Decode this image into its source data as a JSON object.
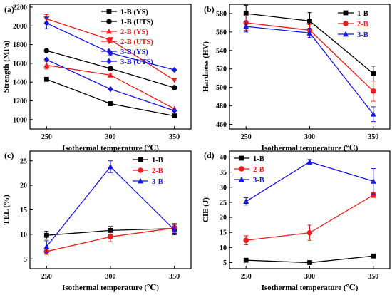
{
  "figure": {
    "colors": {
      "black": "#000000",
      "red": "#ee1c1c",
      "blue": "#1515e6"
    }
  },
  "chart_data": [
    {
      "panel": "(a)",
      "type": "line",
      "xlabel": "Isothermal temperature (℃)",
      "ylabel": "Strength (MPa)",
      "x": [
        250,
        300,
        350
      ],
      "xlim": [
        237,
        363
      ],
      "ylim": [
        900,
        2230
      ],
      "yticks": [
        1000,
        1200,
        1400,
        1600,
        1800,
        2000,
        2200
      ],
      "legend_position": "top-right",
      "series": [
        {
          "name": "1-B (YS)",
          "values": [
            1430,
            1170,
            1040
          ],
          "errors": [
            0,
            0,
            0
          ],
          "color": "black",
          "marker": "square"
        },
        {
          "name": "1-B (UTS)",
          "values": [
            1735,
            1545,
            1340
          ],
          "errors": [
            0,
            0,
            0
          ],
          "color": "black",
          "marker": "circle"
        },
        {
          "name": "2-B (YS)",
          "values": [
            1580,
            1475,
            1115
          ],
          "errors": [
            40,
            20,
            0
          ],
          "color": "red",
          "marker": "triangle-up"
        },
        {
          "name": "2-B (UTS)",
          "values": [
            2075,
            1850,
            1420
          ],
          "errors": [
            45,
            25,
            0
          ],
          "color": "red",
          "marker": "triangle-down"
        },
        {
          "name": "3-B (YS)",
          "values": [
            1640,
            1325,
            1095
          ],
          "errors": [
            0,
            0,
            0
          ],
          "color": "blue",
          "marker": "diamond"
        },
        {
          "name": "3-B (UTS)",
          "values": [
            2030,
            1710,
            1530
          ],
          "errors": [
            60,
            20,
            0
          ],
          "color": "blue",
          "marker": "diamond"
        }
      ]
    },
    {
      "panel": "(b)",
      "type": "line",
      "xlabel": "Isothermal temperature (℃)",
      "ylabel": "Hardness (HV)",
      "x": [
        250,
        300,
        350
      ],
      "xlim": [
        237,
        363
      ],
      "ylim": [
        455,
        590
      ],
      "yticks": [
        460,
        480,
        500,
        520,
        540,
        560,
        580
      ],
      "legend_position": "top-right",
      "series": [
        {
          "name": "1-B",
          "values": [
            580,
            572,
            515
          ],
          "errors": [
            9,
            9,
            8
          ],
          "color": "black",
          "marker": "square"
        },
        {
          "name": "2-B",
          "values": [
            570,
            562,
            496
          ],
          "errors": [
            8,
            6,
            11
          ],
          "color": "red",
          "marker": "circle"
        },
        {
          "name": "3-B",
          "values": [
            566,
            559,
            471
          ],
          "errors": [
            6,
            5,
            8
          ],
          "color": "blue",
          "marker": "triangle-up"
        }
      ]
    },
    {
      "panel": "(c)",
      "type": "line",
      "xlabel": "Isothermal temperature (℃)",
      "ylabel": "TEL (%)",
      "x": [
        250,
        300,
        350
      ],
      "xlim": [
        237,
        363
      ],
      "ylim": [
        3,
        27
      ],
      "yticks": [
        5,
        10,
        15,
        20,
        25
      ],
      "legend_position": "top-right",
      "series": [
        {
          "name": "1-B",
          "values": [
            9.8,
            10.8,
            11.2
          ],
          "errors": [
            0.8,
            0.8,
            1.0
          ],
          "color": "black",
          "marker": "square"
        },
        {
          "name": "2-B",
          "values": [
            6.5,
            9.5,
            11.3
          ],
          "errors": [
            0.6,
            1.0,
            0.9
          ],
          "color": "red",
          "marker": "circle"
        },
        {
          "name": "3-B",
          "values": [
            7.5,
            23.8,
            10.9
          ],
          "errors": [
            1.2,
            1.2,
            1.0
          ],
          "color": "blue",
          "marker": "triangle-up"
        }
      ]
    },
    {
      "panel": "(d)",
      "type": "line",
      "xlabel": "Isothermal temperature (℃)",
      "ylabel": "CIE (J)",
      "x": [
        250,
        300,
        350
      ],
      "xlim": [
        237,
        363
      ],
      "ylim": [
        3,
        42
      ],
      "yticks": [
        5,
        10,
        15,
        20,
        25,
        30,
        35,
        40
      ],
      "legend_position": "top-left",
      "series": [
        {
          "name": "1-B",
          "values": [
            5.8,
            5.0,
            7.2
          ],
          "errors": [
            0.3,
            0.5,
            0.6
          ],
          "color": "black",
          "marker": "square"
        },
        {
          "name": "2-B",
          "values": [
            12.4,
            14.9,
            27.4
          ],
          "errors": [
            1.5,
            2.5,
            0.8
          ],
          "color": "red",
          "marker": "circle"
        },
        {
          "name": "3-B",
          "values": [
            25.3,
            38.4,
            32.0
          ],
          "errors": [
            1.2,
            0.8,
            4.2
          ],
          "color": "blue",
          "marker": "triangle-up"
        }
      ]
    }
  ]
}
